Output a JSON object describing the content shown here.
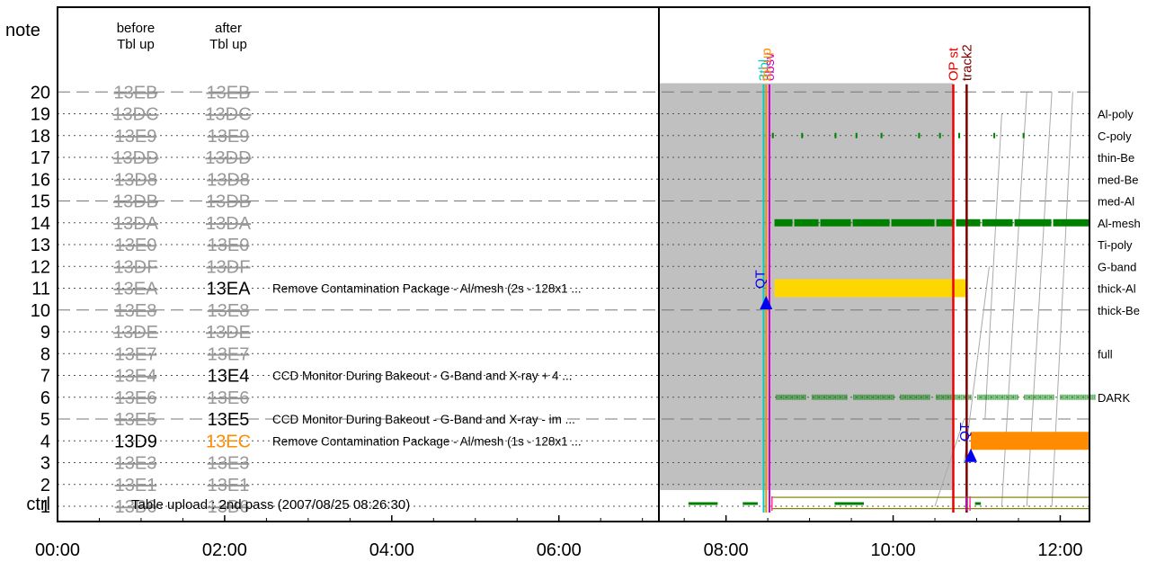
{
  "chart_data": {
    "type": "timeline",
    "header": {
      "note": "note",
      "before_line1": "before",
      "before_line2": "Tbl up",
      "after_line1": "after",
      "after_line2": "Tbl up"
    },
    "ctrl_label": "ctrl",
    "x_ticks": [
      "00:00",
      "02:00",
      "04:00",
      "06:00",
      "08:00",
      "10:00",
      "12:00"
    ],
    "x_range_hours": [
      0,
      12.35
    ],
    "rows": [
      {
        "n": "20",
        "before": "13EB",
        "after": "13EB",
        "before_active": false,
        "after_active": false,
        "comment": "",
        "right_label": "",
        "dashed": true
      },
      {
        "n": "19",
        "before": "13DC",
        "after": "13DC",
        "before_active": false,
        "after_active": false,
        "comment": "",
        "right_label": "Al-poly",
        "dashed": false
      },
      {
        "n": "18",
        "before": "13E9",
        "after": "13E9",
        "before_active": false,
        "after_active": false,
        "comment": "",
        "right_label": "C-poly",
        "dashed": false
      },
      {
        "n": "17",
        "before": "13DD",
        "after": "13DD",
        "before_active": false,
        "after_active": false,
        "comment": "",
        "right_label": "thin-Be",
        "dashed": false
      },
      {
        "n": "16",
        "before": "13D8",
        "after": "13D8",
        "before_active": false,
        "after_active": false,
        "comment": "",
        "right_label": "med-Be",
        "dashed": false
      },
      {
        "n": "15",
        "before": "13DB",
        "after": "13DB",
        "before_active": false,
        "after_active": false,
        "comment": "",
        "right_label": "med-Al",
        "dashed": true
      },
      {
        "n": "14",
        "before": "13DA",
        "after": "13DA",
        "before_active": false,
        "after_active": false,
        "comment": "",
        "right_label": "Al-mesh",
        "dashed": false
      },
      {
        "n": "13",
        "before": "13E0",
        "after": "13E0",
        "before_active": false,
        "after_active": false,
        "comment": "",
        "right_label": "Ti-poly",
        "dashed": false
      },
      {
        "n": "12",
        "before": "13DF",
        "after": "13DF",
        "before_active": false,
        "after_active": false,
        "comment": "",
        "right_label": "G-band",
        "dashed": false
      },
      {
        "n": "11",
        "before": "13EA",
        "after": "13EA",
        "before_active": false,
        "after_active": true,
        "comment": "Remove Contamination Package - Al/mesh (2s - 128x1 ...",
        "right_label": "thick-Al",
        "dashed": false
      },
      {
        "n": "10",
        "before": "13E8",
        "after": "13E8",
        "before_active": false,
        "after_active": false,
        "comment": "",
        "right_label": "thick-Be",
        "dashed": true
      },
      {
        "n": "9",
        "before": "13DE",
        "after": "13DE",
        "before_active": false,
        "after_active": false,
        "comment": "",
        "right_label": "",
        "dashed": false
      },
      {
        "n": "8",
        "before": "13E7",
        "after": "13E7",
        "before_active": false,
        "after_active": false,
        "comment": "",
        "right_label": "full",
        "dashed": false
      },
      {
        "n": "7",
        "before": "13E4",
        "after": "13E4",
        "before_active": false,
        "after_active": true,
        "comment": "CCD Monitor During Bakeout - G-Band and X-ray + 4 ...",
        "right_label": "",
        "dashed": false
      },
      {
        "n": "6",
        "before": "13E6",
        "after": "13E6",
        "before_active": false,
        "after_active": false,
        "comment": "",
        "right_label": "DARK",
        "dashed": false
      },
      {
        "n": "5",
        "before": "13E5",
        "after": "13E5",
        "before_active": false,
        "after_active": true,
        "comment": "CCD Monitor During Bakeout - G-Band and X-ray - im ...",
        "right_label": "",
        "dashed": true
      },
      {
        "n": "4",
        "before": "13D9",
        "after": "13EC",
        "before_active": true,
        "after_active": true,
        "after_color": "#ff8c00",
        "comment": "Remove Contamination Package - Al/mesh (1s - 128x1 ...",
        "right_label": "",
        "dashed": false
      },
      {
        "n": "3",
        "before": "13E3",
        "after": "13E3",
        "before_active": false,
        "after_active": false,
        "comment": "",
        "right_label": "",
        "dashed": false
      },
      {
        "n": "2",
        "before": "13E1",
        "after": "13E1",
        "before_active": false,
        "after_active": false,
        "comment": "",
        "right_label": "",
        "dashed": false
      },
      {
        "n": "1",
        "before": "13B6",
        "after": "13B6",
        "before_active": false,
        "after_active": false,
        "comment": "",
        "right_label": "",
        "dashed": false
      }
    ],
    "upload_text": "Table upload : 2nd pass (2007/08/25 08:26:30)",
    "gray_block": {
      "start": 7.18,
      "end": 10.72,
      "top_row": 20.4
    },
    "markers": [
      {
        "label": "3tbl",
        "time": 8.45,
        "color": "#00cccc"
      },
      {
        "label": "obsv",
        "time": 8.52,
        "color": "#cc00cc"
      },
      {
        "label": "tbl up",
        "time": 8.48,
        "color": "#ff8c00"
      },
      {
        "label": "OP st",
        "time": 10.72,
        "color": "#ee0000"
      },
      {
        "label": "track2",
        "time": 10.88,
        "color": "#7a0000"
      }
    ],
    "qt_markers": [
      {
        "label": "QT",
        "time": 8.48,
        "row": 10.4
      },
      {
        "label": "QT",
        "time": 10.93,
        "row": 3.4
      }
    ],
    "colors": {
      "green": "#008000",
      "yellow": "#ffd700",
      "orange": "#ff8c00",
      "gray_block": "#c0c0c0",
      "inactive_text": "#999999",
      "olive": "#808000",
      "qt_blue": "#0000ee"
    },
    "bars": [
      {
        "row": 11,
        "start": 8.58,
        "end": 10.88,
        "color": "#ffd700",
        "height": 0.8
      },
      {
        "row": 4,
        "start": 10.93,
        "end": 12.35,
        "color": "#ff8c00",
        "height": 0.8
      }
    ],
    "intermittent_rows": [
      {
        "row": 14,
        "start": 8.58,
        "end": 12.35,
        "style": "dense"
      },
      {
        "row": 6,
        "start": 8.6,
        "end": 12.35,
        "style": "dotted"
      },
      {
        "row": 18,
        "start": 8.55,
        "end": 12.0,
        "style": "sparse"
      }
    ],
    "ctrl_segments": [
      {
        "start": 7.55,
        "end": 7.9
      },
      {
        "start": 8.2,
        "end": 8.38
      },
      {
        "start": 9.3,
        "end": 9.65
      },
      {
        "start": 10.98,
        "end": 11.05
      }
    ],
    "olive_band": {
      "start": 8.55,
      "end": 12.35,
      "row_top": 1.45,
      "row_bottom": 0.85
    }
  }
}
